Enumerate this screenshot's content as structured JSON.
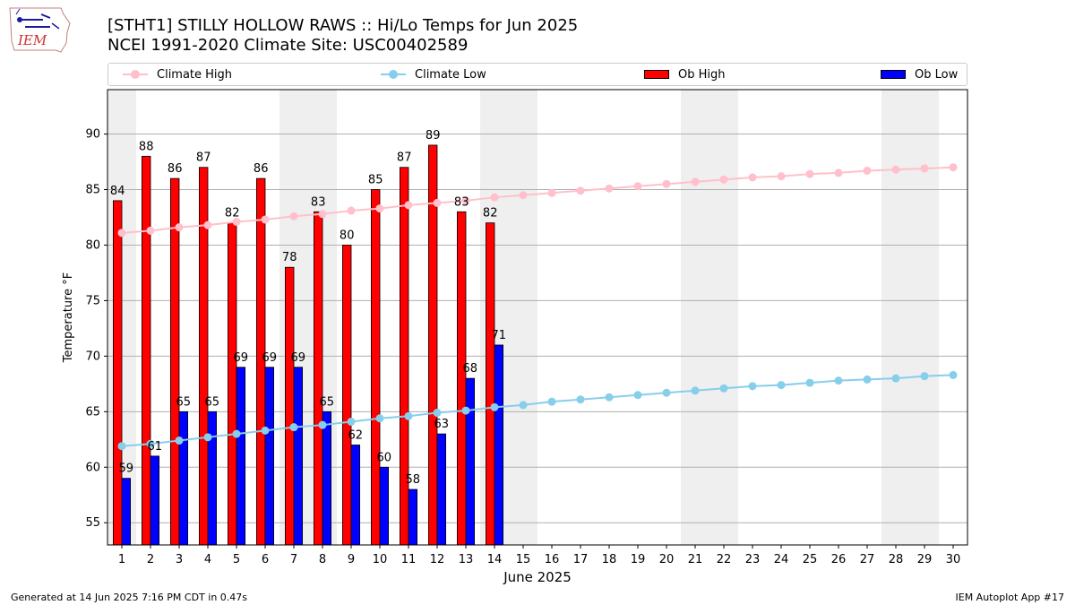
{
  "header": {
    "title_line1": "[STHT1] STILLY HOLLOW RAWS :: Hi/Lo Temps for Jun 2025",
    "title_line2": "NCEI 1991-2020 Climate Site: USC00402589"
  },
  "logo": {
    "text": "IEM",
    "icon": "iem-iowa-logo-icon"
  },
  "footer": {
    "left": "Generated at 14 Jun 2025 7:16 PM CDT in 0.47s",
    "right": "IEM Autoplot App #17"
  },
  "chart_data": {
    "type": "bar",
    "xlabel": "June 2025",
    "ylabel": "Temperature °F",
    "ylim": [
      53,
      94
    ],
    "xlim": [
      0.5,
      30.5
    ],
    "yticks": [
      55,
      60,
      65,
      70,
      75,
      80,
      85,
      90
    ],
    "days": [
      1,
      2,
      3,
      4,
      5,
      6,
      7,
      8,
      9,
      10,
      11,
      12,
      13,
      14,
      15,
      16,
      17,
      18,
      19,
      20,
      21,
      22,
      23,
      24,
      25,
      26,
      27,
      28,
      29,
      30
    ],
    "weekend_days": [
      1,
      7,
      8,
      14,
      15,
      21,
      22,
      28,
      29
    ],
    "grid": "horizontal",
    "legend_position": "top",
    "series": [
      {
        "name": "Climate High",
        "kind": "line",
        "color": "#ffc0cb",
        "values": [
          81.1,
          81.3,
          81.6,
          81.8,
          82.1,
          82.3,
          82.6,
          82.8,
          83.1,
          83.3,
          83.6,
          83.8,
          84.0,
          84.3,
          84.5,
          84.7,
          84.9,
          85.1,
          85.3,
          85.5,
          85.7,
          85.9,
          86.1,
          86.2,
          86.4,
          86.5,
          86.7,
          86.8,
          86.9,
          87.0
        ]
      },
      {
        "name": "Climate Low",
        "kind": "line",
        "color": "#87ceeb",
        "values": [
          61.9,
          62.1,
          62.4,
          62.7,
          63.0,
          63.3,
          63.6,
          63.8,
          64.1,
          64.4,
          64.6,
          64.9,
          65.1,
          65.4,
          65.6,
          65.9,
          66.1,
          66.3,
          66.5,
          66.7,
          66.9,
          67.1,
          67.3,
          67.4,
          67.6,
          67.8,
          67.9,
          68.0,
          68.2,
          68.3
        ]
      },
      {
        "name": "Ob High",
        "kind": "bar",
        "color": "#ff0000",
        "values": [
          84,
          88,
          86,
          87,
          82,
          86,
          78,
          83,
          80,
          85,
          87,
          89,
          83,
          82
        ]
      },
      {
        "name": "Ob Low",
        "kind": "bar",
        "color": "#0000ff",
        "values": [
          59,
          61,
          65,
          65,
          69,
          69,
          69,
          65,
          62,
          60,
          58,
          63,
          68,
          71
        ]
      }
    ]
  }
}
